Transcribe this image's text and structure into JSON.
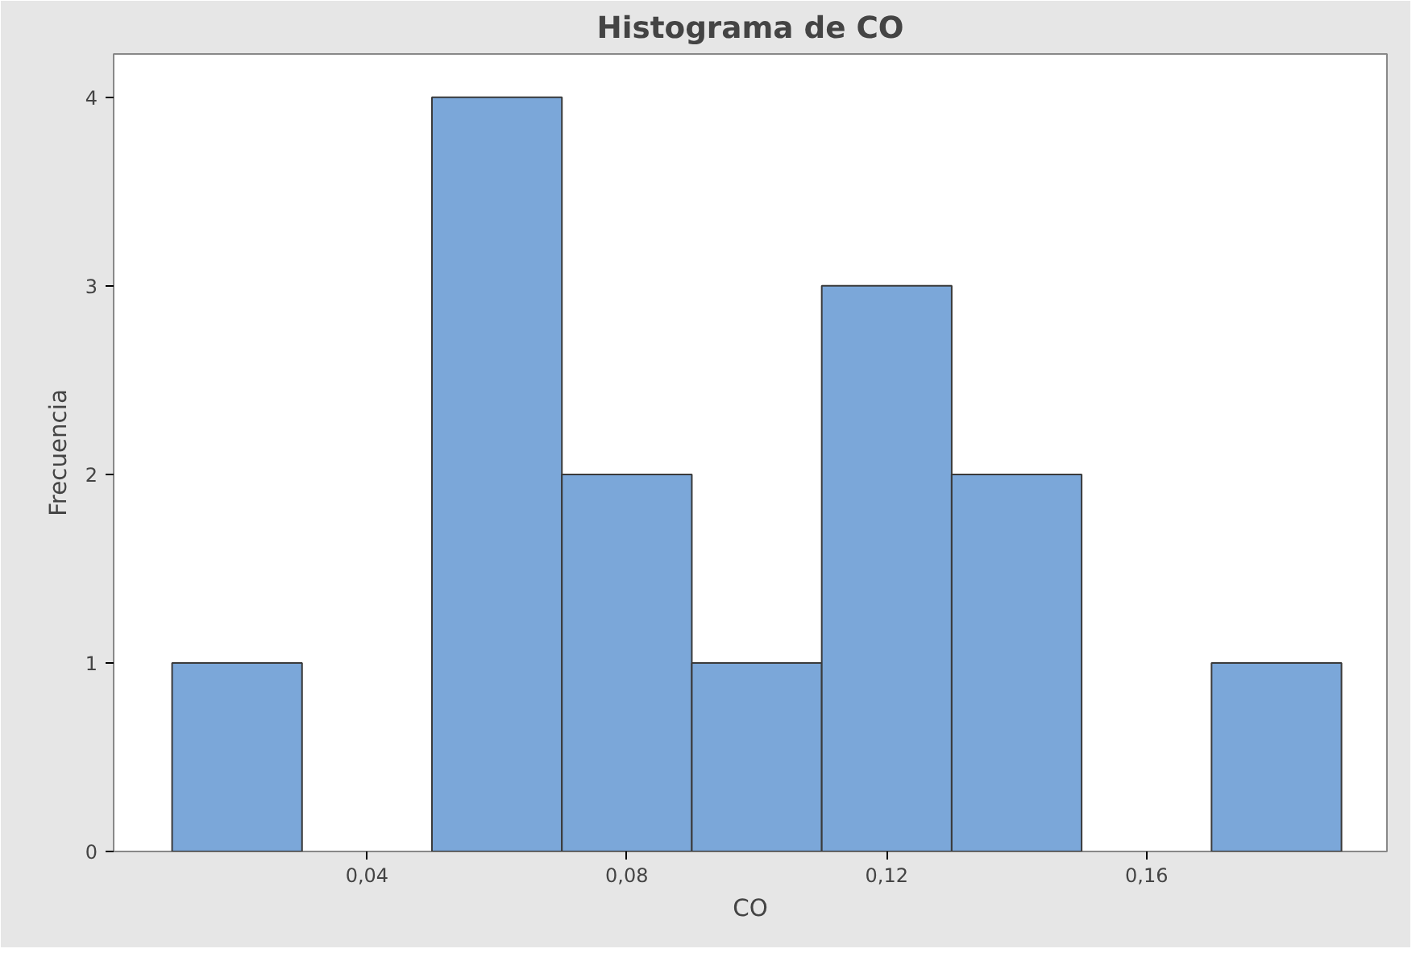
{
  "chart_data": {
    "type": "histogram",
    "title": "Histograma de CO",
    "xlabel": "CO",
    "ylabel": "Frecuencia",
    "bins": [
      0.01,
      0.03,
      0.05,
      0.07,
      0.09,
      0.11,
      0.13,
      0.15,
      0.17,
      0.19
    ],
    "values": [
      1,
      0,
      4,
      2,
      1,
      3,
      2,
      0,
      1
    ],
    "color": "#7ba7d9",
    "xlim": [
      0.001,
      0.197
    ],
    "ylim": [
      0,
      4.23
    ],
    "xticks": [
      {
        "value": 0.04,
        "label": "0,04"
      },
      {
        "value": 0.08,
        "label": "0,08"
      },
      {
        "value": 0.12,
        "label": "0,12"
      },
      {
        "value": 0.16,
        "label": "0,16"
      }
    ],
    "yticks": [
      0,
      1,
      2,
      3,
      4
    ],
    "grid": false
  }
}
